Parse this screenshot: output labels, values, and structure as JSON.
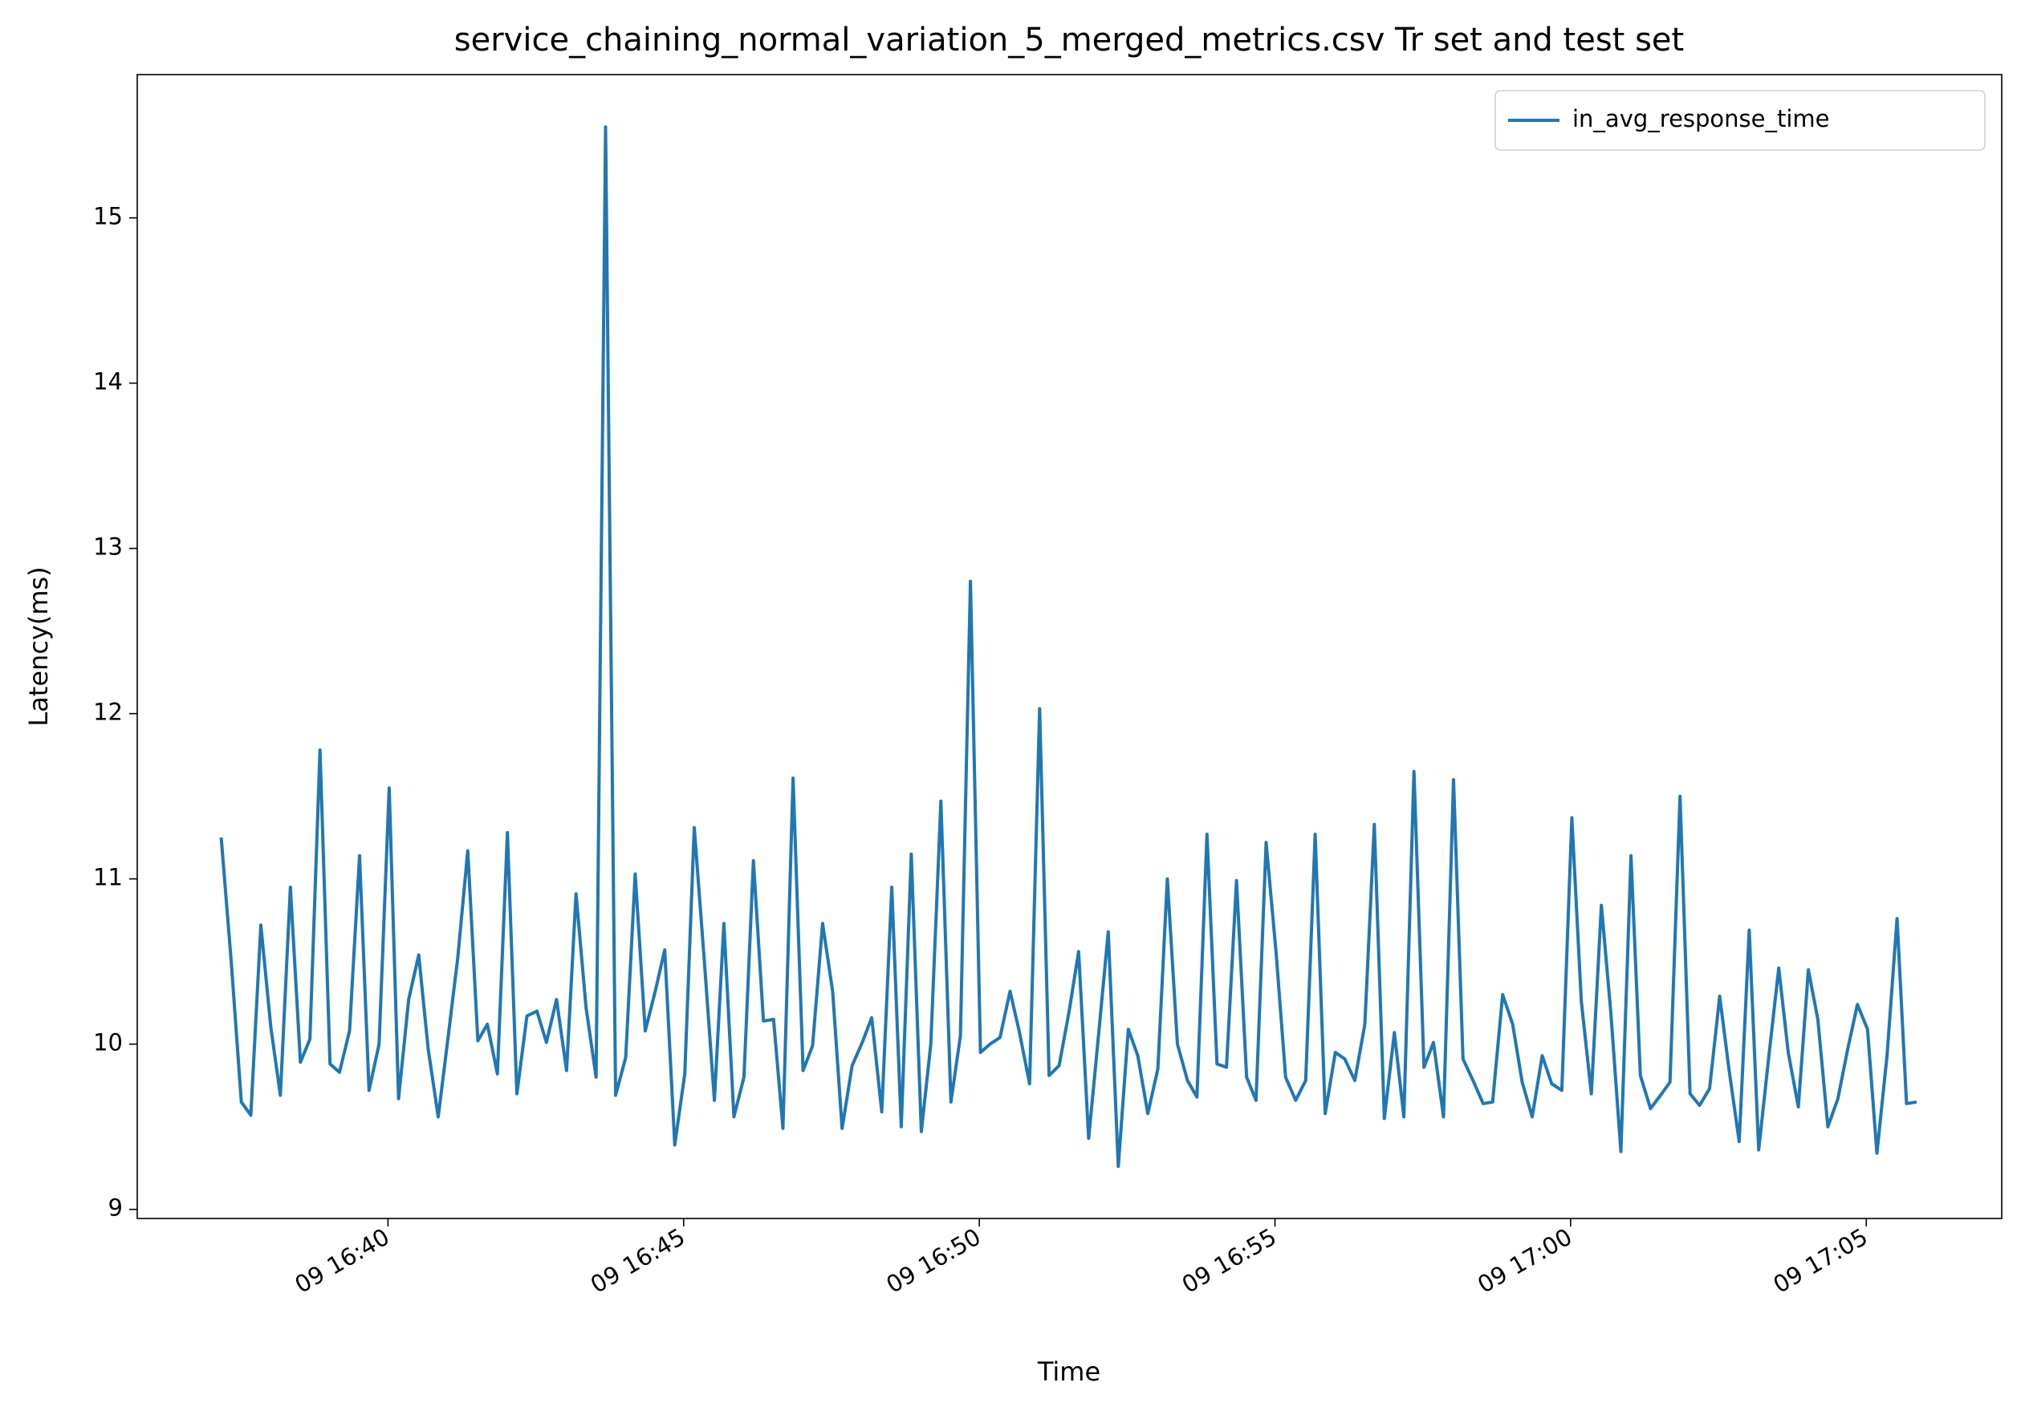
{
  "chart_data": {
    "type": "line",
    "title": "service_chaining_normal_variation_5_merged_metrics.csv Tr set and test set",
    "xlabel": "Time",
    "ylabel": "Latency(ms)",
    "x": [
      997.18,
      997.35,
      997.52,
      997.68,
      997.85,
      998.02,
      998.18,
      998.35,
      998.52,
      998.68,
      998.85,
      999.02,
      999.18,
      999.35,
      999.52,
      999.68,
      999.85,
      1000.02,
      1000.18,
      1000.35,
      1000.52,
      1000.68,
      1000.85,
      1001.02,
      1001.18,
      1001.35,
      1001.52,
      1001.68,
      1001.85,
      1002.02,
      1002.18,
      1002.35,
      1002.52,
      1002.68,
      1002.85,
      1003.02,
      1003.18,
      1003.35,
      1003.52,
      1003.68,
      1003.85,
      1004.02,
      1004.18,
      1004.35,
      1004.52,
      1004.68,
      1004.85,
      1005.02,
      1005.18,
      1005.35,
      1005.52,
      1005.68,
      1005.85,
      1006.02,
      1006.18,
      1006.35,
      1006.52,
      1006.68,
      1006.85,
      1007.02,
      1007.18,
      1007.35,
      1007.52,
      1007.68,
      1007.85,
      1008.02,
      1008.18,
      1008.35,
      1008.52,
      1008.68,
      1008.85,
      1009.02,
      1009.18,
      1009.35,
      1009.52,
      1009.68,
      1009.85,
      1010.02,
      1010.18,
      1010.35,
      1010.52,
      1010.68,
      1010.85,
      1011.02,
      1011.18,
      1011.35,
      1011.52,
      1011.68,
      1011.85,
      1012.02,
      1012.18,
      1012.35,
      1012.52,
      1012.68,
      1012.85,
      1013.02,
      1013.18,
      1013.35,
      1013.52,
      1013.68,
      1013.85,
      1014.02,
      1014.18,
      1014.35,
      1014.52,
      1014.68,
      1014.85,
      1015.02,
      1015.18,
      1015.35,
      1015.52,
      1015.68,
      1015.85,
      1016.02,
      1016.18,
      1016.35,
      1016.52,
      1016.68,
      1016.85,
      1017.02,
      1017.18,
      1017.35,
      1017.52,
      1017.68,
      1017.85,
      1018.02,
      1018.18,
      1018.35,
      1018.52,
      1018.68,
      1018.85,
      1019.02,
      1019.18,
      1019.35,
      1019.52,
      1019.68,
      1019.85,
      1020.02,
      1020.18,
      1020.35,
      1020.52,
      1020.68,
      1020.85,
      1021.02,
      1021.18,
      1021.35,
      1021.52,
      1021.68,
      1021.85,
      1022.02,
      1022.18,
      1022.35,
      1022.52,
      1022.68,
      1022.85,
      1023.02,
      1023.18,
      1023.35,
      1023.52,
      1023.68,
      1023.85,
      1024.02,
      1024.18,
      1024.35,
      1024.52,
      1024.68,
      1024.85,
      1025.02,
      1025.18,
      1025.35,
      1025.52,
      1025.68,
      1025.85
    ],
    "series": [
      {
        "name": "in_avg_response_time",
        "color": "#1f77b4",
        "values": [
          11.25,
          10.5,
          9.65,
          9.57,
          10.72,
          10.1,
          9.69,
          10.95,
          9.89,
          10.03,
          11.78,
          9.88,
          9.83,
          10.08,
          11.14,
          9.72,
          10.0,
          11.55,
          9.67,
          10.27,
          10.54,
          9.97,
          9.56,
          10.05,
          10.52,
          11.17,
          10.02,
          10.12,
          9.82,
          11.28,
          9.7,
          10.17,
          10.2,
          10.01,
          10.27,
          9.84,
          10.91,
          10.22,
          9.8,
          15.55,
          9.69,
          9.92,
          11.03,
          10.08,
          10.32,
          10.57,
          9.39,
          9.82,
          11.31,
          10.5,
          9.66,
          10.73,
          9.56,
          9.8,
          11.11,
          10.14,
          10.15,
          9.49,
          11.61,
          9.84,
          9.99,
          10.73,
          10.32,
          9.49,
          9.87,
          10.01,
          10.16,
          9.59,
          10.95,
          9.5,
          11.15,
          9.47,
          10.0,
          11.47,
          9.65,
          10.05,
          12.8,
          9.95,
          10.0,
          10.04,
          10.32,
          10.07,
          9.76,
          12.03,
          9.81,
          9.87,
          10.2,
          10.56,
          9.43,
          10.07,
          10.68,
          9.26,
          10.09,
          9.93,
          9.58,
          9.85,
          11.0,
          10.0,
          9.78,
          9.68,
          11.27,
          9.88,
          9.86,
          10.99,
          9.8,
          9.66,
          11.22,
          10.55,
          9.8,
          9.66,
          9.78,
          11.27,
          9.58,
          9.95,
          9.91,
          9.78,
          10.12,
          11.33,
          9.55,
          10.07,
          9.56,
          11.65,
          9.86,
          10.01,
          9.56,
          11.6,
          9.91,
          9.78,
          9.64,
          9.65,
          10.3,
          10.12,
          9.77,
          9.56,
          9.93,
          9.76,
          9.72,
          11.37,
          10.26,
          9.7,
          10.84,
          10.19,
          9.35,
          11.14,
          9.81,
          9.61,
          9.69,
          9.77,
          11.5,
          9.7,
          9.63,
          9.73,
          10.29,
          9.84,
          9.41,
          10.69,
          9.36,
          9.92,
          10.46,
          9.95,
          9.62,
          10.45,
          10.15,
          9.5,
          9.67,
          9.96,
          10.24,
          10.09,
          9.34,
          9.93,
          10.76,
          9.64,
          9.65
        ]
      }
    ],
    "xlim": [
      995.76,
      1027.29
    ],
    "xticks": [
      {
        "value": 1000,
        "label": "09 16:40"
      },
      {
        "value": 1005,
        "label": "09 16:45"
      },
      {
        "value": 1010,
        "label": "09 16:50"
      },
      {
        "value": 1015,
        "label": "09 16:55"
      },
      {
        "value": 1020,
        "label": "09 17:00"
      },
      {
        "value": 1025,
        "label": "09 17:05"
      }
    ],
    "ylim": [
      8.945,
      15.867
    ],
    "yticks": [
      9,
      10,
      11,
      12,
      13,
      14,
      15
    ],
    "grid": false,
    "legend": "upper right"
  }
}
